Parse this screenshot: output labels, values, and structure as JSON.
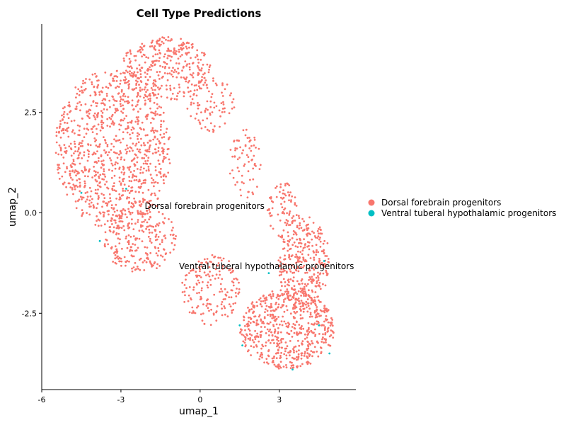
{
  "chart_data": {
    "type": "scatter",
    "title": "Cell Type Predictions",
    "xlabel": "umap_1",
    "ylabel": "umap_2",
    "xlim": [
      -6.0,
      5.9
    ],
    "ylim": [
      -4.4,
      4.7
    ],
    "x_ticks": [
      -6,
      -3,
      0,
      3
    ],
    "x_tick_labels": [
      "-6",
      "-3",
      "0",
      "3"
    ],
    "y_ticks": [
      -2.5,
      0.0,
      2.5
    ],
    "y_tick_labels": [
      "-2.5",
      "0.0",
      "2.5"
    ],
    "grid": false,
    "legend_position": "right",
    "series": [
      {
        "name": "Dorsal forebrain progenitors",
        "color": "#F8766D",
        "regions": [
          {
            "shape": "ellipse",
            "cx": -3.3,
            "cy": 1.6,
            "rx": 2.2,
            "ry": 2.0,
            "count": 950
          },
          {
            "shape": "ellipse",
            "cx": -1.3,
            "cy": 3.6,
            "rx": 1.7,
            "ry": 0.8,
            "count": 330
          },
          {
            "shape": "ellipse",
            "cx": 0.4,
            "cy": 2.7,
            "rx": 0.9,
            "ry": 0.7,
            "count": 90
          },
          {
            "shape": "ellipse",
            "cx": 1.7,
            "cy": 1.2,
            "rx": 0.6,
            "ry": 0.9,
            "count": 70
          },
          {
            "shape": "ellipse",
            "cx": 3.1,
            "cy": 0.1,
            "rx": 0.6,
            "ry": 0.7,
            "count": 70
          },
          {
            "shape": "ellipse",
            "cx": 3.9,
            "cy": -1.2,
            "rx": 1.0,
            "ry": 1.2,
            "count": 330
          },
          {
            "shape": "ellipse",
            "cx": 3.3,
            "cy": -2.9,
            "rx": 1.8,
            "ry": 1.0,
            "count": 600
          },
          {
            "shape": "ellipse",
            "cx": 0.4,
            "cy": -1.9,
            "rx": 1.1,
            "ry": 0.9,
            "count": 170
          },
          {
            "shape": "ellipse",
            "cx": -2.3,
            "cy": -0.6,
            "rx": 1.4,
            "ry": 0.9,
            "count": 250
          }
        ]
      },
      {
        "name": "Ventral tuberal hypothalamic progenitors",
        "color": "#00BFC4",
        "points": [
          [
            -4.5,
            0.5
          ],
          [
            -2.8,
            0.6
          ],
          [
            -3.8,
            -0.7
          ],
          [
            1.5,
            -2.8
          ],
          [
            1.6,
            -3.3
          ],
          [
            3.5,
            -3.9
          ],
          [
            4.5,
            -2.8
          ],
          [
            4.9,
            -3.5
          ],
          [
            2.6,
            -1.5
          ],
          [
            4.7,
            -1.2
          ]
        ]
      }
    ],
    "annotations": [
      {
        "text": "Dorsal forebrain progenitors",
        "x": -2.1,
        "y": 0.1
      },
      {
        "text": "Ventral tuberal hypothalamic progenitors",
        "x": -0.8,
        "y": -1.4
      }
    ]
  }
}
